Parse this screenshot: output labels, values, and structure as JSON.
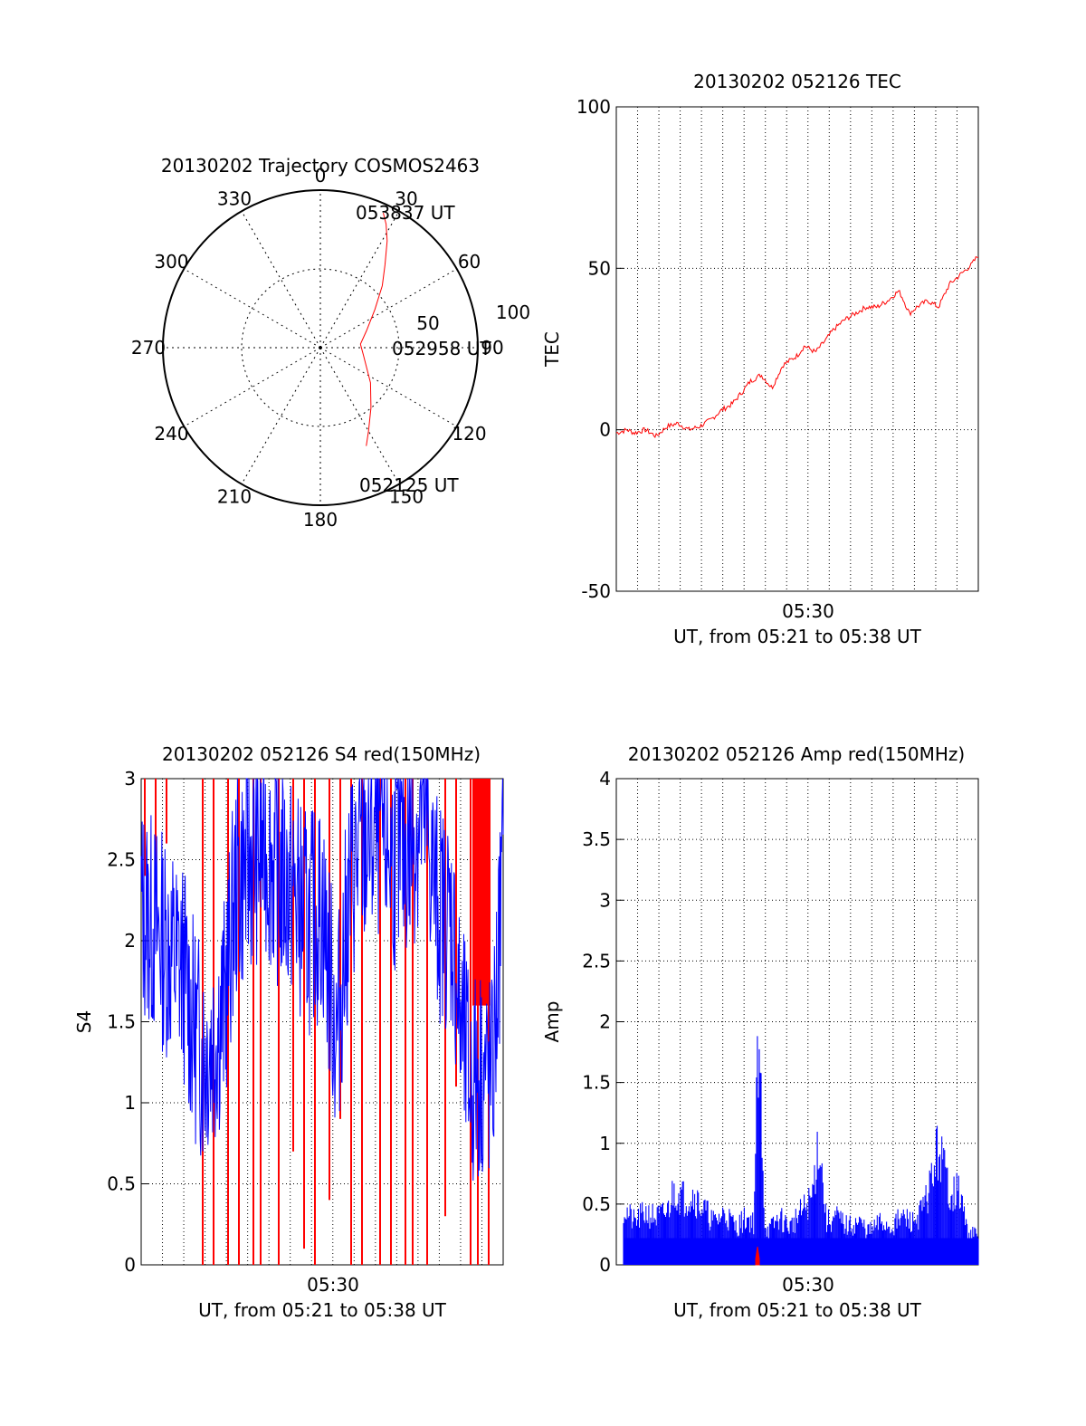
{
  "chart_data": [
    {
      "type": "polar",
      "title": "20130202 Trajectory COSMOS2463",
      "azimuth_labels": [
        "0",
        "30",
        "60",
        "90",
        "120",
        "150",
        "180",
        "210",
        "240",
        "270",
        "300",
        "330"
      ],
      "elevation_ring_labels": [
        "50",
        "100"
      ],
      "center_time_label": "052958 UT",
      "start_time_label": "052125 UT",
      "end_time_label": "053837 UT",
      "series": [
        {
          "color": "#ff0000",
          "trajectory": [
            [
              155,
              62
            ],
            [
              150,
              55
            ],
            [
              140,
              45
            ],
            [
              125,
              35
            ],
            [
              100,
              25
            ],
            [
              85,
              23
            ],
            [
              70,
              28
            ],
            [
              55,
              38
            ],
            [
              45,
              50
            ],
            [
              38,
              60
            ],
            [
              32,
              72
            ],
            [
              28,
              80
            ],
            [
              25,
              85
            ]
          ]
        }
      ]
    },
    {
      "type": "line",
      "title": "20130202 052126 TEC",
      "xlabel": "UT, from 05:21 to 05:38 UT",
      "ylabel": "TEC",
      "x_tick_labels": [
        "05:30"
      ],
      "y_tick_labels": [
        "100",
        "50",
        "0",
        "-50"
      ],
      "ylim": [
        -50,
        100
      ],
      "grid": true,
      "series": [
        {
          "color": "#ff0000",
          "t_fraction": [
            0,
            0.03,
            0.05,
            0.08,
            0.11,
            0.14,
            0.17,
            0.2,
            0.23,
            0.26,
            0.29,
            0.32,
            0.35,
            0.37,
            0.4,
            0.43,
            0.46,
            0.5,
            0.52,
            0.55,
            0.58,
            0.6,
            0.63,
            0.66,
            0.69,
            0.72,
            0.75,
            0.78,
            0.79,
            0.81,
            0.83,
            0.86,
            0.89,
            0.92,
            0.95,
            0.98,
            1.0
          ],
          "values": [
            -1,
            0,
            -1,
            0,
            -2,
            1,
            2,
            0,
            1,
            3,
            6,
            8,
            12,
            15,
            17,
            13,
            20,
            23,
            26,
            24,
            28,
            31,
            34,
            36,
            38,
            38,
            40,
            43,
            41,
            36,
            38,
            40,
            38,
            45,
            48,
            51,
            54
          ]
        }
      ]
    },
    {
      "type": "line",
      "title": "20130202 052126 S4 red(150MHz)",
      "xlabel": "UT, from 05:21 to 05:38 UT",
      "ylabel": "S4",
      "x_tick_labels": [
        "05:30"
      ],
      "y_tick_labels": [
        "3",
        "2.5",
        "2",
        "1.5",
        "1",
        "0.5",
        "0"
      ],
      "ylim": [
        0,
        3
      ],
      "grid": true,
      "series": [
        {
          "color": "#0000ff",
          "t_fraction": [
            0,
            0.03,
            0.06,
            0.09,
            0.12,
            0.14,
            0.17,
            0.2,
            0.23,
            0.26,
            0.3,
            0.34,
            0.38,
            0.42,
            0.46,
            0.5,
            0.54,
            0.58,
            0.62,
            0.66,
            0.7,
            0.74,
            0.78,
            0.82,
            0.86,
            0.88,
            0.91,
            0.94,
            0.97,
            1.0
          ],
          "values": [
            2.2,
            2.1,
            2.0,
            1.9,
            1.8,
            1.5,
            1.3,
            1.4,
            1.6,
            2.3,
            2.5,
            2.6,
            2.4,
            2.3,
            2.1,
            2.2,
            1.4,
            2.4,
            2.6,
            2.7,
            2.5,
            2.6,
            2.8,
            2.2,
            2.1,
            1.5,
            1.1,
            1.2,
            1.1,
            2.5
          ]
        },
        {
          "color": "#ff0000",
          "spike_t_fraction": [
            0.01,
            0.04,
            0.07,
            0.17,
            0.2,
            0.24,
            0.27,
            0.31,
            0.33,
            0.38,
            0.42,
            0.45,
            0.48,
            0.52,
            0.55,
            0.58,
            0.61,
            0.66,
            0.69,
            0.73,
            0.75,
            0.79,
            0.84,
            0.87,
            0.91,
            0.93,
            0.96
          ],
          "spike_low_values": [
            2.4,
            2.3,
            2.6,
            0,
            0,
            0,
            0,
            0,
            0,
            0,
            0.7,
            0.1,
            0,
            0.4,
            0.9,
            0,
            0,
            0,
            0,
            0,
            0,
            0,
            0.3,
            1.1,
            0,
            0,
            0
          ]
        }
      ]
    },
    {
      "type": "line",
      "title": "20130202 052126 Amp red(150MHz)",
      "xlabel": "UT, from 05:21 to 05:38 UT",
      "ylabel": "Amp",
      "x_tick_labels": [
        "05:30"
      ],
      "y_tick_labels": [
        "4",
        "3.5",
        "3",
        "2.5",
        "2",
        "1.5",
        "1",
        "0.5",
        "0"
      ],
      "ylim": [
        0,
        4
      ],
      "grid": true,
      "series": [
        {
          "color": "#0000ff",
          "t_fraction": [
            0,
            0.02,
            0.05,
            0.08,
            0.11,
            0.14,
            0.16,
            0.19,
            0.21,
            0.24,
            0.27,
            0.3,
            0.33,
            0.36,
            0.38,
            0.39,
            0.4,
            0.41,
            0.42,
            0.45,
            0.48,
            0.51,
            0.54,
            0.56,
            0.57,
            0.58,
            0.61,
            0.64,
            0.67,
            0.7,
            0.73,
            0.76,
            0.79,
            0.82,
            0.85,
            0.87,
            0.89,
            0.92,
            0.95,
            0.97,
            1.0
          ],
          "values": [
            0.55,
            0.6,
            0.45,
            0.55,
            0.5,
            0.55,
            0.8,
            0.7,
            0.75,
            0.6,
            0.45,
            0.55,
            0.4,
            0.5,
            0.45,
            2.05,
            1.8,
            0.45,
            0.35,
            0.5,
            0.4,
            0.55,
            0.7,
            1.35,
            0.9,
            0.45,
            0.5,
            0.4,
            0.45,
            0.35,
            0.45,
            0.4,
            0.5,
            0.45,
            0.6,
            0.9,
            1.25,
            0.8,
            0.75,
            0.35,
            0.3
          ]
        },
        {
          "color": "#ff0000",
          "t_fraction": [
            0.385,
            0.39,
            0.395
          ],
          "values": [
            0.05,
            0.15,
            0.05
          ]
        }
      ]
    }
  ]
}
